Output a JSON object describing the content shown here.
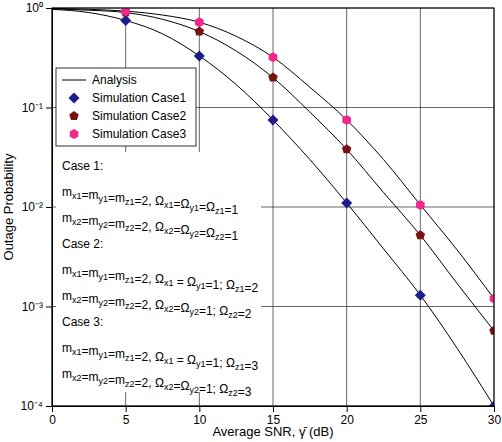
{
  "chart_data": {
    "type": "line",
    "x_label": "Average SNR, γ̄ (dB)",
    "y_label": "Outage Probability",
    "log": "y",
    "grid": true,
    "legend": "upper left",
    "xlim": [
      0,
      30
    ],
    "xticks": [
      0,
      5,
      10,
      15,
      20,
      25,
      30
    ],
    "ylim": [
      0.0001,
      1
    ],
    "yticks": [
      {
        "value": 0.0001,
        "label": "10⁻⁴"
      },
      {
        "value": 0.001,
        "label": "10⁻³"
      },
      {
        "value": 0.01,
        "label": "10⁻²"
      },
      {
        "value": 0.1,
        "label": "10⁻¹"
      },
      {
        "value": 1,
        "label": "10⁰"
      }
    ],
    "analysis": {
      "name": "Analysis",
      "color": "#000000",
      "line_style": "solid",
      "x": [
        0,
        2.5,
        5,
        7.5,
        10,
        12.5,
        15,
        17.5,
        20,
        22.5,
        25,
        27.5,
        30
      ],
      "series": [
        {
          "values": [
            0.97,
            0.9,
            0.75,
            0.55,
            0.33,
            0.17,
            0.075,
            0.03,
            0.011,
            0.0038,
            0.0013,
            0.00038,
            0.0001
          ]
        },
        {
          "values": [
            0.98,
            0.95,
            0.9,
            0.77,
            0.58,
            0.37,
            0.2,
            0.09,
            0.038,
            0.014,
            0.0052,
            0.0017,
            0.00057
          ]
        },
        {
          "values": [
            0.99,
            0.97,
            0.93,
            0.85,
            0.72,
            0.52,
            0.32,
            0.16,
            0.075,
            0.03,
            0.0105,
            0.0037,
            0.0012
          ]
        }
      ]
    },
    "series": [
      {
        "name": "Simulation Case1",
        "type": "scatter",
        "marker": "diamond",
        "color": "#1c1c8a",
        "x": [
          5,
          10,
          15,
          20,
          25,
          30
        ],
        "values": [
          0.75,
          0.33,
          0.075,
          0.011,
          0.0013,
          0.0001
        ]
      },
      {
        "name": "Simulation Case2",
        "type": "scatter",
        "marker": "pentagon",
        "color": "#7a1212",
        "x": [
          5,
          10,
          15,
          20,
          25,
          30
        ],
        "values": [
          0.9,
          0.58,
          0.2,
          0.038,
          0.0052,
          0.00057
        ]
      },
      {
        "name": "Simulation Case3",
        "type": "scatter",
        "marker": "hexagon",
        "color": "#f0288c",
        "x": [
          5,
          10,
          15,
          20,
          25,
          30
        ],
        "values": [
          0.93,
          0.72,
          0.32,
          0.075,
          0.0105,
          0.0012
        ]
      }
    ],
    "annotations": [
      "Case 1:",
      "mx1=my1=mz1=2, Ωx1=Ωy1=Ωz1=1",
      "mx2=my2=mz2=2, Ωx2=Ωy2=Ωz2=1",
      "Case 2:",
      "mx1=my1=mz1=2, Ωx1 = Ωy1=1; Ωz1=2",
      "mx2=my2=mz2=2, Ωx2=Ωy2=1; Ωz2=2",
      "Case 3:",
      "mx1=my1=mz1=2, Ωx1 = Ωy1=1; Ωz1=3",
      "mx2=my2=mz2=2, Ωx2=Ωy2=1; Ωz2=3"
    ]
  }
}
